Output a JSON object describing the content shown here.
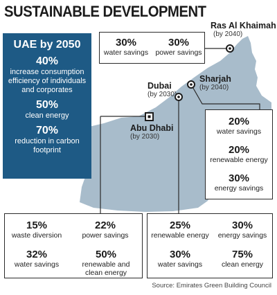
{
  "title": "SUSTAINABLE DEVELOPMENT",
  "uae": {
    "heading": "UAE by 2050",
    "items": [
      {
        "value": "40%",
        "label": "increase consumption efficiency of individuals and corporates"
      },
      {
        "value": "50%",
        "label": "clean energy"
      },
      {
        "value": "70%",
        "label": "reduction in carbon footprint"
      }
    ]
  },
  "cities": {
    "ras_al_khaimah": {
      "name": "Ras Al Khaimah",
      "by": "(by 2040)"
    },
    "sharjah": {
      "name": "Sharjah",
      "by": "(by 2040)"
    },
    "dubai": {
      "name": "Dubai",
      "by": "(by 2030)"
    },
    "abu_dhabi": {
      "name": "Abu Dhabi",
      "by": "(by 2030)"
    }
  },
  "boxes": {
    "ras_al_khaimah": [
      {
        "value": "30%",
        "label": "water savings"
      },
      {
        "value": "30%",
        "label": "power savings"
      }
    ],
    "sharjah": [
      {
        "value": "20%",
        "label": "water savings"
      },
      {
        "value": "20%",
        "label": "renewable energy"
      },
      {
        "value": "30%",
        "label": "energy savings"
      }
    ],
    "abu_dhabi": [
      {
        "value": "15%",
        "label": "waste diversion"
      },
      {
        "value": "22%",
        "label": "power savings"
      },
      {
        "value": "32%",
        "label": "water savings"
      },
      {
        "value": "50%",
        "label": "renewable and clean energy"
      }
    ],
    "dubai": [
      {
        "value": "25%",
        "label": "renewable energy"
      },
      {
        "value": "30%",
        "label": "energy savings"
      },
      {
        "value": "30%",
        "label": "water savings"
      },
      {
        "value": "75%",
        "label": "clean energy"
      }
    ]
  },
  "source": "Source: Emirates Green Building Council",
  "colors": {
    "land": "#a8bccb",
    "uae_box": "#1e5a85",
    "marker": "#1b1b1b"
  }
}
